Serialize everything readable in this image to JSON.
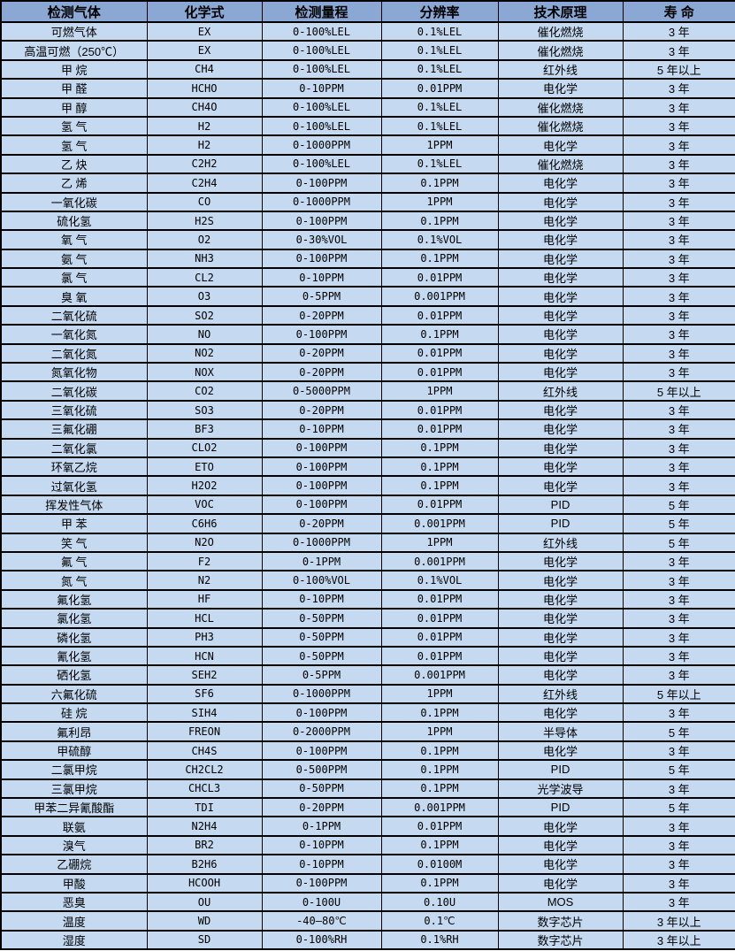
{
  "colors": {
    "header_bg": "#8ba7d4",
    "row_bg": "#c5d9f1",
    "border": "#000000",
    "text": "#000000"
  },
  "table": {
    "headers": [
      "检测气体",
      "化学式",
      "检测量程",
      "分辨率",
      "技术原理",
      "寿 命"
    ],
    "rows": [
      [
        "可燃气体",
        "EX",
        "0-100%LEL",
        "0.1%LEL",
        "催化燃烧",
        "3 年"
      ],
      [
        "高温可燃（250℃）",
        "EX",
        "0-100%LEL",
        "0.1%LEL",
        "催化燃烧",
        "3 年"
      ],
      [
        "甲 烷",
        "CH4",
        "0-100%LEL",
        "0.1%LEL",
        "红外线",
        "5 年以上"
      ],
      [
        "甲 醛",
        "HCHO",
        "0-10PPM",
        "0.01PPM",
        "电化学",
        "3 年"
      ],
      [
        "甲 醇",
        "CH4O",
        "0-100%LEL",
        "0.1%LEL",
        "催化燃烧",
        "3 年"
      ],
      [
        "氢 气",
        "H2",
        "0-100%LEL",
        "0.1%LEL",
        "催化燃烧",
        "3 年"
      ],
      [
        "氢 气",
        "H2",
        "0-1000PPM",
        "1PPM",
        "电化学",
        "3 年"
      ],
      [
        "乙 炔",
        "C2H2",
        "0-100%LEL",
        "0.1%LEL",
        "催化燃烧",
        "3 年"
      ],
      [
        "乙 烯",
        "C2H4",
        "0-100PPM",
        "0.1PPM",
        "电化学",
        "3 年"
      ],
      [
        "一氧化碳",
        "CO",
        "0-1000PPM",
        "1PPM",
        "电化学",
        "3 年"
      ],
      [
        "硫化氢",
        "H2S",
        "0-100PPM",
        "0.1PPM",
        "电化学",
        "3 年"
      ],
      [
        "氧 气",
        "O2",
        "0-30%VOL",
        "0.1%VOL",
        "电化学",
        "3 年"
      ],
      [
        "氨 气",
        "NH3",
        "0-100PPM",
        "0.1PPM",
        "电化学",
        "3 年"
      ],
      [
        "氯 气",
        "CL2",
        "0-10PPM",
        "0.01PPM",
        "电化学",
        "3 年"
      ],
      [
        "臭 氧",
        "O3",
        "0-5PPM",
        "0.001PPM",
        "电化学",
        "3 年"
      ],
      [
        "二氧化硫",
        "SO2",
        "0-20PPM",
        "0.01PPM",
        "电化学",
        "3 年"
      ],
      [
        "一氧化氮",
        "NO",
        "0-100PPM",
        "0.1PPM",
        "电化学",
        "3 年"
      ],
      [
        "二氧化氮",
        "NO2",
        "0-20PPM",
        "0.01PPM",
        "电化学",
        "3 年"
      ],
      [
        "氮氧化物",
        "NOX",
        "0-20PPM",
        "0.01PPM",
        "电化学",
        "3 年"
      ],
      [
        "二氧化碳",
        "CO2",
        "0-5000PPM",
        "1PPM",
        "红外线",
        "5 年以上"
      ],
      [
        "三氧化硫",
        "SO3",
        "0-20PPM",
        "0.01PPM",
        "电化学",
        "3 年"
      ],
      [
        "三氟化硼",
        "BF3",
        "0-10PPM",
        "0.01PPM",
        "电化学",
        "3 年"
      ],
      [
        "二氧化氯",
        "CLO2",
        "0-100PPM",
        "0.1PPM",
        "电化学",
        "3 年"
      ],
      [
        "环氧乙烷",
        "ETO",
        "0-100PPM",
        "0.1PPM",
        "电化学",
        "3 年"
      ],
      [
        "过氧化氢",
        "H2O2",
        "0-100PPM",
        "0.1PPM",
        "电化学",
        "3 年"
      ],
      [
        "挥发性气体",
        "VOC",
        "0-100PPM",
        "0.01PPM",
        "PID",
        "5 年"
      ],
      [
        "甲 苯",
        "C6H6",
        "0-20PPM",
        "0.001PPM",
        "PID",
        "5 年"
      ],
      [
        "笑 气",
        "N2O",
        "0-1000PPM",
        "1PPM",
        "红外线",
        "5 年"
      ],
      [
        "氟 气",
        "F2",
        "0-1PPM",
        "0.001PPM",
        "电化学",
        "3 年"
      ],
      [
        "氮 气",
        "N2",
        "0-100%VOL",
        "0.1%VOL",
        "电化学",
        "3 年"
      ],
      [
        "氟化氢",
        "HF",
        "0-10PPM",
        "0.01PPM",
        "电化学",
        "3 年"
      ],
      [
        "氯化氢",
        "HCL",
        "0-50PPM",
        "0.01PPM",
        "电化学",
        "3 年"
      ],
      [
        "磷化氢",
        "PH3",
        "0-50PPM",
        "0.01PPM",
        "电化学",
        "3 年"
      ],
      [
        "氰化氢",
        "HCN",
        "0-50PPM",
        "0.01PPM",
        "电化学",
        "3 年"
      ],
      [
        "硒化氢",
        "SEH2",
        "0-5PPM",
        "0.001PPM",
        "电化学",
        "3 年"
      ],
      [
        "六氟化硫",
        "SF6",
        "0-1000PPM",
        "1PPM",
        "红外线",
        "5 年以上"
      ],
      [
        "硅 烷",
        "SIH4",
        "0-100PPM",
        "0.1PPM",
        "电化学",
        "3 年"
      ],
      [
        "氟利昂",
        "FREON",
        "0-2000PPM",
        "1PPM",
        "半导体",
        "5 年"
      ],
      [
        "甲硫醇",
        "CH4S",
        "0-100PPM",
        "0.1PPM",
        "电化学",
        "3 年"
      ],
      [
        "二氯甲烷",
        "CH2CL2",
        "0-500PPM",
        "0.1PPM",
        "PID",
        "5 年"
      ],
      [
        "三氯甲烷",
        "CHCL3",
        "0-50PPM",
        "0.1PPM",
        "光学波导",
        "3 年"
      ],
      [
        "甲苯二异氰酸酯",
        "TDI",
        "0-20PPM",
        "0.001PPM",
        "PID",
        "5 年"
      ],
      [
        "联氨",
        "N2H4",
        "0-1PPM",
        "0.01PPM",
        "电化学",
        "3 年"
      ],
      [
        "溴气",
        "BR2",
        "0-10PPM",
        "0.1PPM",
        "电化学",
        "3 年"
      ],
      [
        "乙硼烷",
        "B2H6",
        "0-10PPM",
        "0.0100M",
        "电化学",
        "3 年"
      ],
      [
        "甲酸",
        "HCOOH",
        "0-100PPM",
        "0.1PPM",
        "电化学",
        "3 年"
      ],
      [
        "恶臭",
        "OU",
        "0-100U",
        "0.10U",
        "MOS",
        "3 年"
      ],
      [
        "温度",
        "WD",
        "-40—80℃",
        "0.1℃",
        "数字芯片",
        "3 年以上"
      ],
      [
        "湿度",
        "SD",
        "0-100%RH",
        "0.1%RH",
        "数字芯片",
        "3 年以上"
      ]
    ]
  }
}
